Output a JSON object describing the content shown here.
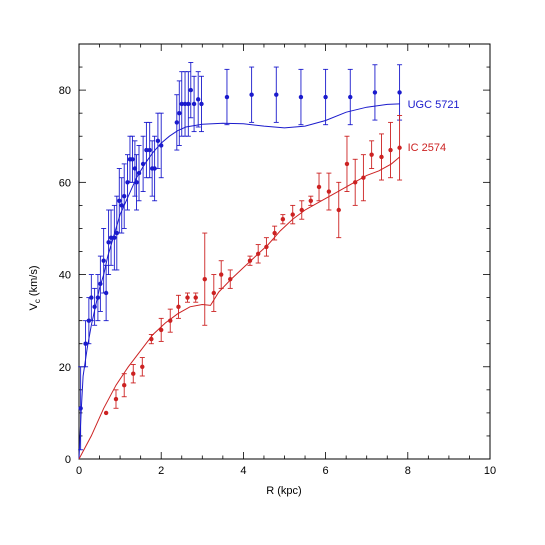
{
  "chart_data": {
    "type": "scatter",
    "title": "",
    "xlabel": "R (kpc)",
    "ylabel_main": "V",
    "ylabel_sub": "c",
    "ylabel_tail": " (km/s)",
    "xlim": [
      0,
      10
    ],
    "ylim": [
      0,
      90
    ],
    "xticks": [
      0,
      2,
      4,
      6,
      8,
      10
    ],
    "yticks": [
      0,
      20,
      40,
      60,
      80
    ],
    "grid": false,
    "series": [
      {
        "name": "UGC 5721",
        "color": "#1a1acc",
        "points": [
          [
            0.04,
            11,
            9
          ],
          [
            0.16,
            25,
            5
          ],
          [
            0.24,
            30,
            5
          ],
          [
            0.3,
            35,
            5
          ],
          [
            0.38,
            33,
            4
          ],
          [
            0.46,
            35,
            5
          ],
          [
            0.52,
            38,
            6
          ],
          [
            0.6,
            43,
            7
          ],
          [
            0.66,
            36,
            6
          ],
          [
            0.72,
            47,
            7
          ],
          [
            0.78,
            48,
            6
          ],
          [
            0.86,
            48,
            7
          ],
          [
            0.92,
            49,
            8
          ],
          [
            0.98,
            56,
            7
          ],
          [
            1.04,
            55,
            6
          ],
          [
            1.1,
            57,
            7
          ],
          [
            1.18,
            60,
            6
          ],
          [
            1.24,
            65,
            5
          ],
          [
            1.3,
            65,
            5
          ],
          [
            1.36,
            63,
            6
          ],
          [
            1.4,
            60,
            6
          ],
          [
            1.46,
            62,
            6
          ],
          [
            1.56,
            64,
            6
          ],
          [
            1.64,
            67,
            6
          ],
          [
            1.72,
            67,
            6
          ],
          [
            1.78,
            63,
            6
          ],
          [
            1.84,
            63,
            7
          ],
          [
            1.92,
            69,
            6
          ],
          [
            2.0,
            68,
            7
          ],
          [
            2.38,
            73,
            6
          ],
          [
            2.44,
            75,
            7
          ],
          [
            2.5,
            77,
            7
          ],
          [
            2.58,
            77,
            7
          ],
          [
            2.66,
            77,
            7
          ],
          [
            2.72,
            80,
            6
          ],
          [
            2.8,
            77,
            6
          ],
          [
            2.9,
            78,
            6
          ],
          [
            2.98,
            77,
            6
          ],
          [
            3.6,
            78.5,
            6
          ],
          [
            4.2,
            79,
            6
          ],
          [
            4.8,
            79,
            6
          ],
          [
            5.4,
            78.5,
            6
          ],
          [
            6.0,
            78.5,
            6
          ],
          [
            6.6,
            78.5,
            6
          ],
          [
            7.2,
            79.5,
            6
          ],
          [
            7.8,
            79.5,
            6
          ]
        ],
        "model": [
          [
            0,
            0
          ],
          [
            0.05,
            10
          ],
          [
            0.1,
            18
          ],
          [
            0.2,
            24
          ],
          [
            0.3,
            29
          ],
          [
            0.4,
            33
          ],
          [
            0.5,
            37
          ],
          [
            0.6,
            40
          ],
          [
            0.7,
            44
          ],
          [
            0.8,
            47
          ],
          [
            0.9,
            50
          ],
          [
            1.0,
            53
          ],
          [
            1.2,
            57
          ],
          [
            1.4,
            61
          ],
          [
            1.6,
            64
          ],
          [
            1.8,
            66.5
          ],
          [
            2.0,
            68.5
          ],
          [
            2.2,
            70
          ],
          [
            2.4,
            71.2
          ],
          [
            2.6,
            72
          ],
          [
            3.0,
            72.6
          ],
          [
            3.5,
            72.8
          ],
          [
            4.0,
            72.7
          ],
          [
            4.5,
            72.2
          ],
          [
            5.0,
            71.8
          ],
          [
            5.5,
            72.2
          ],
          [
            6.0,
            73.4
          ],
          [
            6.5,
            75.2
          ],
          [
            7.0,
            76.3
          ],
          [
            7.5,
            76.9
          ],
          [
            7.8,
            77
          ]
        ]
      },
      {
        "name": "IC 2574",
        "color": "#cc2222",
        "points": [
          [
            0.66,
            10,
            0
          ],
          [
            0.9,
            13,
            2
          ],
          [
            1.1,
            16,
            2.5
          ],
          [
            1.32,
            18.5,
            2
          ],
          [
            1.54,
            20,
            2
          ],
          [
            1.76,
            26,
            1
          ],
          [
            2.0,
            28,
            2.5
          ],
          [
            2.22,
            30,
            2.5
          ],
          [
            2.42,
            33,
            2.5
          ],
          [
            2.64,
            35,
            1
          ],
          [
            2.84,
            35,
            1
          ],
          [
            3.06,
            39,
            10
          ],
          [
            3.28,
            36,
            4
          ],
          [
            3.46,
            40,
            3
          ],
          [
            3.68,
            39,
            2
          ],
          [
            4.16,
            43,
            1
          ],
          [
            4.36,
            44.5,
            2
          ],
          [
            4.56,
            46,
            2
          ],
          [
            4.76,
            49,
            1.5
          ],
          [
            4.96,
            52,
            1
          ],
          [
            5.2,
            53,
            2
          ],
          [
            5.42,
            54,
            2
          ],
          [
            5.64,
            56,
            1
          ],
          [
            5.84,
            59,
            3
          ],
          [
            6.08,
            58,
            4
          ],
          [
            6.32,
            54,
            6
          ],
          [
            6.52,
            64,
            6
          ],
          [
            6.72,
            60,
            5
          ],
          [
            6.92,
            61,
            5
          ],
          [
            7.12,
            66,
            3
          ],
          [
            7.36,
            65.5,
            5
          ],
          [
            7.58,
            67,
            6
          ],
          [
            7.8,
            67.5,
            7
          ]
        ],
        "model": [
          [
            0,
            0
          ],
          [
            0.3,
            5
          ],
          [
            0.6,
            11
          ],
          [
            0.9,
            16
          ],
          [
            1.2,
            20
          ],
          [
            1.5,
            23.5
          ],
          [
            1.8,
            27
          ],
          [
            2.1,
            29.5
          ],
          [
            2.4,
            31.5
          ],
          [
            2.7,
            33
          ],
          [
            3.0,
            33.5
          ],
          [
            3.2,
            33.3
          ],
          [
            3.4,
            36.2
          ],
          [
            3.7,
            39
          ],
          [
            4.0,
            41.5
          ],
          [
            4.3,
            44
          ],
          [
            4.6,
            46.5
          ],
          [
            4.9,
            49.5
          ],
          [
            5.2,
            52
          ],
          [
            5.5,
            54
          ],
          [
            5.8,
            55.5
          ],
          [
            6.1,
            57
          ],
          [
            6.4,
            58.5
          ],
          [
            6.7,
            60
          ],
          [
            7.0,
            61.5
          ],
          [
            7.3,
            62.5
          ],
          [
            7.6,
            64
          ],
          [
            7.8,
            65.5
          ]
        ]
      }
    ]
  }
}
